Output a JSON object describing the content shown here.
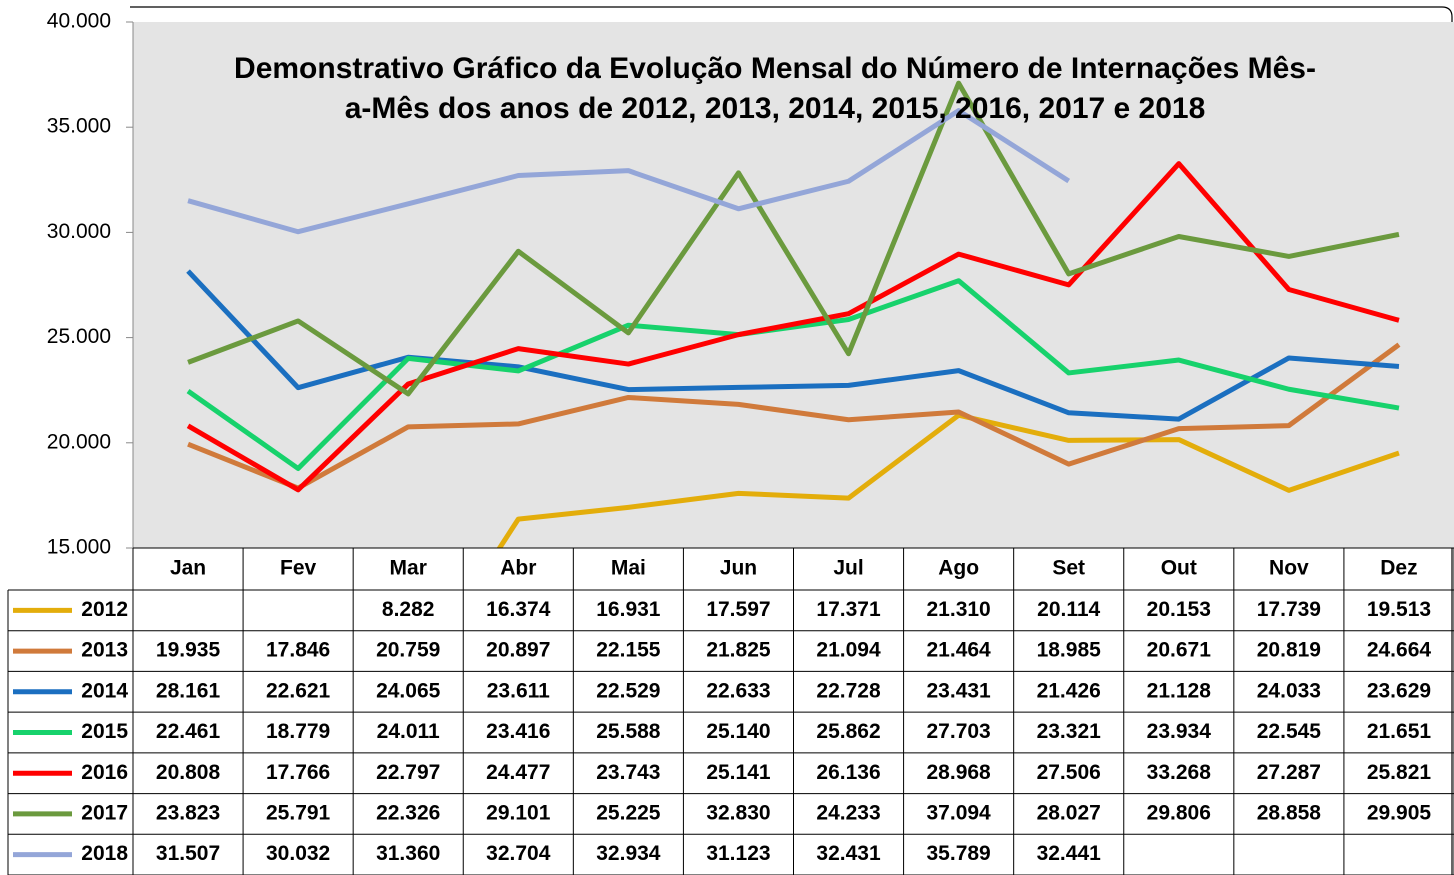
{
  "chart_data": {
    "type": "line",
    "title": [
      "Demonstrativo Gráfico da Evolução Mensal do Número de Internações Mês-",
      "a-Mês dos anos de  2012, 2013, 2014, 2015, 2016, 2017 e 2018"
    ],
    "categories": [
      "Jan",
      "Fev",
      "Mar",
      "Abr",
      "Mai",
      "Jun",
      "Jul",
      "Ago",
      "Set",
      "Out",
      "Nov",
      "Dez"
    ],
    "ylim": [
      15000,
      40000
    ],
    "yticks": [
      {
        "value": 15000,
        "label": "15.000"
      },
      {
        "value": 20000,
        "label": "20.000"
      },
      {
        "value": 25000,
        "label": "25.000"
      },
      {
        "value": 30000,
        "label": "30.000"
      },
      {
        "value": 35000,
        "label": "35.000"
      },
      {
        "value": 40000,
        "label": "40.000"
      }
    ],
    "grid": false,
    "series": [
      {
        "name": "2012",
        "color": "#e3ad0b",
        "values": [
          null,
          null,
          8282,
          16374,
          16931,
          17597,
          17371,
          21310,
          20114,
          20153,
          17739,
          19513
        ],
        "value_labels": [
          null,
          null,
          "8.282",
          "16.374",
          "16.931",
          "17.597",
          "17.371",
          "21.310",
          "20.114",
          "20.153",
          "17.739",
          "19.513"
        ]
      },
      {
        "name": "2013",
        "color": "#d07a3b",
        "values": [
          19935,
          17846,
          20759,
          20897,
          22155,
          21825,
          21094,
          21464,
          18985,
          20671,
          20819,
          24664
        ],
        "value_labels": [
          "19.935",
          "17.846",
          "20.759",
          "20.897",
          "22.155",
          "21.825",
          "21.094",
          "21.464",
          "18.985",
          "20.671",
          "20.819",
          "24.664"
        ]
      },
      {
        "name": "2014",
        "color": "#1b6fc0",
        "values": [
          28161,
          22621,
          24065,
          23611,
          22529,
          22633,
          22728,
          23431,
          21426,
          21128,
          24033,
          23629
        ],
        "value_labels": [
          "28.161",
          "22.621",
          "24.065",
          "23.611",
          "22.529",
          "22.633",
          "22.728",
          "23.431",
          "21.426",
          "21.128",
          "24.033",
          "23.629"
        ]
      },
      {
        "name": "2015",
        "color": "#17d26c",
        "values": [
          22461,
          18779,
          24011,
          23416,
          25588,
          25140,
          25862,
          27703,
          23321,
          23934,
          22545,
          21651
        ],
        "value_labels": [
          "22.461",
          "18.779",
          "24.011",
          "23.416",
          "25.588",
          "25.140",
          "25.862",
          "27.703",
          "23.321",
          "23.934",
          "22.545",
          "21.651"
        ]
      },
      {
        "name": "2016",
        "color": "#ff0000",
        "values": [
          20808,
          17766,
          22797,
          24477,
          23743,
          25141,
          26136,
          28968,
          27506,
          33268,
          27287,
          25821
        ],
        "value_labels": [
          "20.808",
          "17.766",
          "22.797",
          "24.477",
          "23.743",
          "25.141",
          "26.136",
          "28.968",
          "27.506",
          "33.268",
          "27.287",
          "25.821"
        ]
      },
      {
        "name": "2017",
        "color": "#6b9a3e",
        "values": [
          23823,
          25791,
          22326,
          29101,
          25225,
          32830,
          24233,
          37094,
          28027,
          29806,
          28858,
          29905
        ],
        "value_labels": [
          "23.823",
          "25.791",
          "22.326",
          "29.101",
          "25.225",
          "32.830",
          "24.233",
          "37.094",
          "28.027",
          "29.806",
          "28.858",
          "29.905"
        ]
      },
      {
        "name": "2018",
        "color": "#94a6d8",
        "values": [
          31507,
          30032,
          31360,
          32704,
          32934,
          31123,
          32431,
          35789,
          32441,
          null,
          null,
          null
        ],
        "value_labels": [
          "31.507",
          "30.032",
          "31.360",
          "32.704",
          "32.934",
          "31.123",
          "32.431",
          "35.789",
          "32.441",
          null,
          null,
          null
        ]
      }
    ]
  }
}
